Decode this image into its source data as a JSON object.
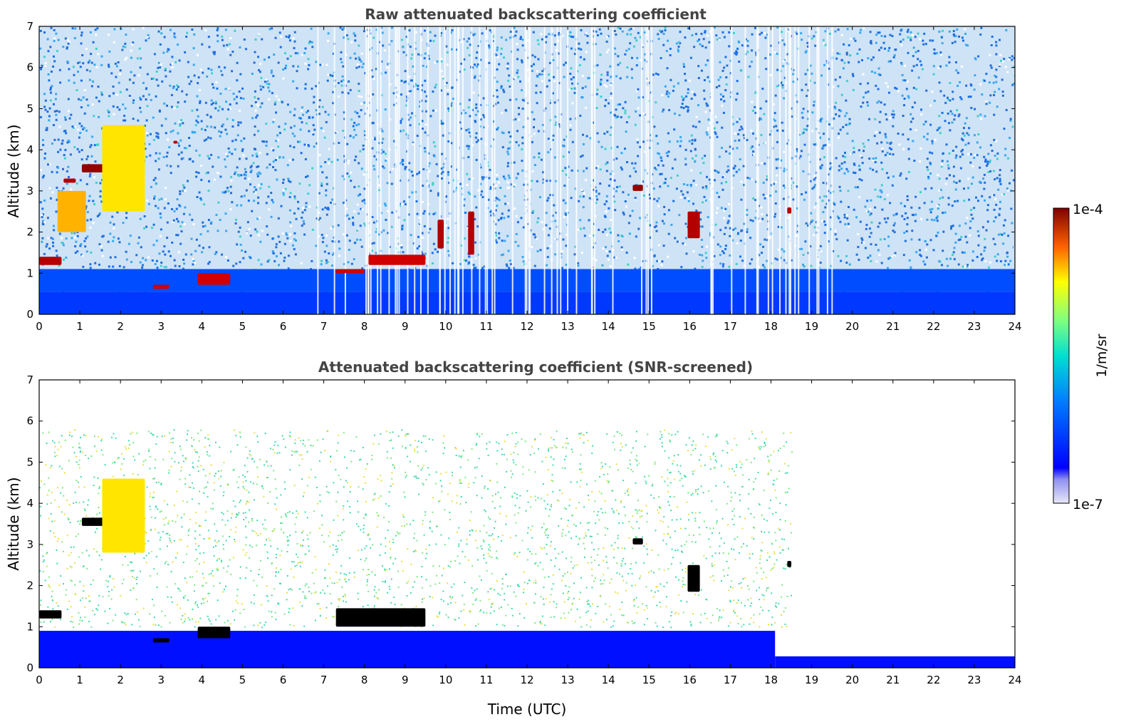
{
  "chart_data": [
    {
      "type": "heatmap",
      "title": "Raw attenuated backscattering coefficient",
      "xlabel": "",
      "ylabel": "Altitude (km)",
      "xlim": [
        0,
        24
      ],
      "ylim": [
        0,
        7
      ],
      "xticks": [
        "0",
        "1",
        "2",
        "3",
        "4",
        "5",
        "6",
        "7",
        "8",
        "9",
        "10",
        "11",
        "12",
        "13",
        "14",
        "15",
        "16",
        "17",
        "18",
        "19",
        "20",
        "21",
        "22",
        "23",
        "24"
      ],
      "yticks": [
        "0",
        "1",
        "2",
        "3",
        "4",
        "5",
        "6",
        "7"
      ],
      "background_noise_hex": "#2f7fe0",
      "boundary_layer": [
        {
          "x0": 0,
          "x1": 24,
          "y0": 0,
          "y1": 0.55,
          "level": 0.18
        },
        {
          "x0": 0,
          "x1": 24,
          "y0": 0.55,
          "y1": 1.1,
          "level": 0.2
        }
      ],
      "features": [
        {
          "x0": 0.0,
          "x1": 0.55,
          "y0": 1.2,
          "y1": 1.4,
          "level": 0.95
        },
        {
          "x0": 0.45,
          "x1": 1.15,
          "y0": 2.0,
          "y1": 3.0,
          "level": 0.7
        },
        {
          "x0": 1.05,
          "x1": 1.8,
          "y0": 3.45,
          "y1": 3.65,
          "level": 0.98
        },
        {
          "x0": 1.55,
          "x1": 2.6,
          "y0": 2.5,
          "y1": 4.6,
          "level": 0.65
        },
        {
          "x0": 0.6,
          "x1": 0.9,
          "y0": 3.2,
          "y1": 3.3,
          "level": 0.95
        },
        {
          "x0": 2.8,
          "x1": 3.2,
          "y0": 0.62,
          "y1": 0.72,
          "level": 0.92
        },
        {
          "x0": 3.9,
          "x1": 4.7,
          "y0": 0.72,
          "y1": 1.0,
          "level": 0.92
        },
        {
          "x0": 7.3,
          "x1": 8.0,
          "y0": 1.0,
          "y1": 1.1,
          "level": 0.92
        },
        {
          "x0": 8.1,
          "x1": 9.5,
          "y0": 1.2,
          "y1": 1.45,
          "level": 0.92
        },
        {
          "x0": 9.8,
          "x1": 9.95,
          "y0": 1.6,
          "y1": 2.3,
          "level": 0.95
        },
        {
          "x0": 10.55,
          "x1": 10.7,
          "y0": 1.45,
          "y1": 2.5,
          "level": 0.95
        },
        {
          "x0": 14.6,
          "x1": 14.85,
          "y0": 3.0,
          "y1": 3.15,
          "level": 0.98
        },
        {
          "x0": 15.95,
          "x1": 16.25,
          "y0": 1.85,
          "y1": 2.5,
          "level": 0.95
        },
        {
          "x0": 18.4,
          "x1": 18.5,
          "y0": 2.45,
          "y1": 2.6,
          "level": 0.95
        },
        {
          "x0": 3.3,
          "x1": 3.4,
          "y0": 4.15,
          "y1": 4.22,
          "level": 0.95
        }
      ]
    },
    {
      "type": "heatmap",
      "title": "Attenuated backscattering coefficient (SNR-screened)",
      "xlabel": "Time (UTC)",
      "ylabel": "Altitude (km)",
      "xlim": [
        0,
        24
      ],
      "ylim": [
        0,
        7
      ],
      "xticks": [
        "0",
        "1",
        "2",
        "3",
        "4",
        "5",
        "6",
        "7",
        "8",
        "9",
        "10",
        "11",
        "12",
        "13",
        "14",
        "15",
        "16",
        "17",
        "18",
        "19",
        "20",
        "21",
        "22",
        "23",
        "24"
      ],
      "yticks": [
        "0",
        "1",
        "2",
        "3",
        "4",
        "5",
        "6",
        "7"
      ],
      "boundary_layer": [
        {
          "x0": 0,
          "x1": 18.1,
          "y0": 0,
          "y1": 0.9,
          "level": 0.14
        },
        {
          "x0": 18.1,
          "x1": 24,
          "y0": 0,
          "y1": 0.28,
          "level": 0.14
        }
      ],
      "features": [
        {
          "x0": 0.0,
          "x1": 0.55,
          "y0": 1.2,
          "y1": 1.4,
          "level": 1.0
        },
        {
          "x0": 1.05,
          "x1": 1.8,
          "y0": 3.45,
          "y1": 3.65,
          "level": 1.0
        },
        {
          "x0": 1.55,
          "x1": 2.6,
          "y0": 2.8,
          "y1": 4.6,
          "level": 0.65
        },
        {
          "x0": 2.8,
          "x1": 3.2,
          "y0": 0.62,
          "y1": 0.72,
          "level": 1.0
        },
        {
          "x0": 3.9,
          "x1": 4.7,
          "y0": 0.72,
          "y1": 1.0,
          "level": 1.0
        },
        {
          "x0": 7.3,
          "x1": 9.5,
          "y0": 1.0,
          "y1": 1.45,
          "level": 1.0
        },
        {
          "x0": 14.6,
          "x1": 14.85,
          "y0": 3.0,
          "y1": 3.15,
          "level": 1.0
        },
        {
          "x0": 15.95,
          "x1": 16.25,
          "y0": 1.85,
          "y1": 2.5,
          "level": 1.0
        },
        {
          "x0": 18.4,
          "x1": 18.5,
          "y0": 2.45,
          "y1": 2.6,
          "level": 1.0
        }
      ]
    }
  ],
  "colorbar": {
    "label": "1/m/sr",
    "max_label": "1e-4",
    "min_label": "1e-7",
    "colormap": "jet",
    "scale": "log"
  },
  "colors": {
    "title_text": "#444444",
    "cloud_saturated": "#7f0000",
    "screened_dense_cloud": "#000000"
  }
}
